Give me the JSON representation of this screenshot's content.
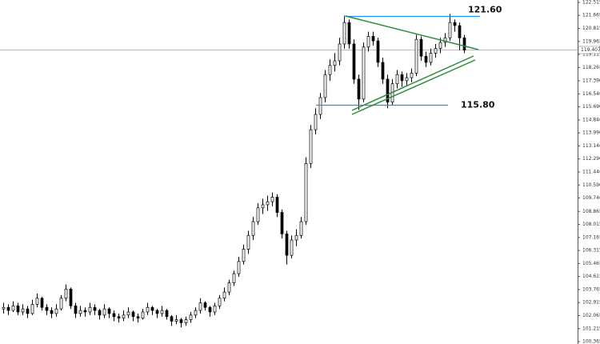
{
  "chart_data": {
    "type": "candlestick",
    "candles": [
      [
        102.5,
        102.9,
        102.2,
        102.6
      ],
      [
        102.6,
        102.8,
        102.1,
        102.4
      ],
      [
        102.4,
        103.0,
        102.3,
        102.7
      ],
      [
        102.7,
        102.9,
        102.1,
        102.3
      ],
      [
        102.3,
        102.8,
        102.1,
        102.5
      ],
      [
        102.5,
        102.7,
        101.9,
        102.2
      ],
      [
        102.2,
        103.1,
        102.1,
        102.8
      ],
      [
        102.8,
        103.5,
        102.6,
        103.2
      ],
      [
        103.2,
        103.3,
        102.4,
        102.6
      ],
      [
        102.6,
        102.8,
        102.1,
        102.4
      ],
      [
        102.4,
        102.6,
        101.9,
        102.2
      ],
      [
        102.2,
        102.8,
        102.0,
        102.5
      ],
      [
        102.5,
        103.4,
        102.4,
        103.2
      ],
      [
        103.2,
        104.1,
        103.0,
        103.8
      ],
      [
        103.8,
        103.9,
        102.5,
        102.7
      ],
      [
        102.7,
        102.9,
        101.9,
        102.2
      ],
      [
        102.2,
        102.7,
        102.0,
        102.4
      ],
      [
        102.4,
        102.6,
        102.0,
        102.3
      ],
      [
        102.3,
        102.9,
        102.1,
        102.6
      ],
      [
        102.6,
        102.8,
        102.1,
        102.4
      ],
      [
        102.4,
        102.5,
        101.8,
        102.1
      ],
      [
        102.1,
        102.8,
        101.9,
        102.5
      ],
      [
        102.5,
        102.6,
        101.9,
        102.2
      ],
      [
        102.2,
        102.4,
        101.7,
        102.0
      ],
      [
        102.0,
        102.2,
        101.6,
        101.9
      ],
      [
        101.9,
        102.4,
        101.7,
        102.1
      ],
      [
        102.1,
        102.6,
        101.9,
        102.3
      ],
      [
        102.3,
        102.4,
        101.7,
        102.0
      ],
      [
        102.0,
        102.2,
        101.6,
        101.9
      ],
      [
        101.9,
        102.5,
        101.8,
        102.3
      ],
      [
        102.3,
        102.9,
        102.1,
        102.6
      ],
      [
        102.6,
        102.7,
        102.1,
        102.4
      ],
      [
        102.4,
        102.5,
        101.9,
        102.2
      ],
      [
        102.2,
        102.7,
        102.0,
        102.4
      ],
      [
        102.4,
        102.5,
        101.8,
        102.0
      ],
      [
        102.0,
        102.1,
        101.4,
        101.7
      ],
      [
        101.7,
        102.1,
        101.5,
        101.8
      ],
      [
        101.8,
        101.9,
        101.3,
        101.6
      ],
      [
        101.6,
        102.0,
        101.4,
        101.8
      ],
      [
        101.8,
        102.3,
        101.6,
        102.1
      ],
      [
        102.1,
        102.6,
        101.9,
        102.4
      ],
      [
        102.4,
        103.2,
        102.2,
        102.9
      ],
      [
        102.9,
        103.0,
        102.4,
        102.6
      ],
      [
        102.6,
        102.7,
        102.0,
        102.3
      ],
      [
        102.3,
        102.9,
        102.1,
        102.7
      ],
      [
        102.7,
        103.4,
        102.5,
        103.2
      ],
      [
        103.2,
        103.9,
        103.0,
        103.6
      ],
      [
        103.6,
        104.4,
        103.4,
        104.2
      ],
      [
        104.2,
        105.0,
        104.0,
        104.8
      ],
      [
        104.8,
        105.9,
        104.6,
        105.6
      ],
      [
        105.6,
        106.7,
        105.4,
        106.4
      ],
      [
        106.4,
        107.6,
        106.1,
        107.3
      ],
      [
        107.3,
        108.5,
        107.0,
        108.2
      ],
      [
        108.2,
        109.4,
        108.0,
        109.1
      ],
      [
        109.1,
        109.7,
        108.7,
        109.3
      ],
      [
        109.3,
        109.9,
        108.9,
        109.5
      ],
      [
        109.5,
        110.1,
        109.2,
        109.8
      ],
      [
        109.8,
        110.0,
        108.5,
        108.8
      ],
      [
        108.8,
        109.0,
        107.1,
        107.4
      ],
      [
        107.4,
        107.6,
        105.4,
        106.0
      ],
      [
        106.0,
        107.3,
        105.8,
        107.0
      ],
      [
        107.0,
        107.7,
        106.6,
        107.3
      ],
      [
        107.3,
        108.5,
        107.1,
        108.2
      ],
      [
        108.2,
        112.4,
        108.0,
        112.0
      ],
      [
        112.0,
        114.5,
        111.7,
        114.2
      ],
      [
        114.2,
        115.6,
        113.9,
        115.2
      ],
      [
        115.2,
        116.6,
        114.9,
        116.3
      ],
      [
        116.3,
        118.1,
        116.0,
        117.8
      ],
      [
        117.8,
        118.8,
        117.4,
        118.4
      ],
      [
        118.4,
        119.2,
        118.0,
        118.7
      ],
      [
        118.7,
        120.2,
        118.4,
        119.8
      ],
      [
        119.8,
        121.66,
        119.5,
        121.2
      ],
      [
        121.2,
        121.4,
        119.5,
        119.8
      ],
      [
        119.8,
        120.1,
        117.2,
        117.5
      ],
      [
        117.5,
        117.8,
        115.5,
        116.2
      ],
      [
        116.2,
        119.9,
        116.0,
        119.6
      ],
      [
        119.6,
        120.6,
        119.3,
        120.3
      ],
      [
        120.3,
        120.6,
        119.7,
        120.0
      ],
      [
        120.0,
        120.2,
        118.3,
        118.6
      ],
      [
        118.6,
        118.9,
        117.2,
        117.5
      ],
      [
        117.5,
        117.8,
        115.6,
        116.0
      ],
      [
        116.0,
        117.5,
        115.8,
        117.2
      ],
      [
        117.2,
        118.1,
        116.9,
        117.8
      ],
      [
        117.8,
        118.0,
        117.0,
        117.4
      ],
      [
        117.4,
        117.9,
        117.1,
        117.6
      ],
      [
        117.6,
        118.2,
        117.3,
        117.9
      ],
      [
        117.9,
        120.4,
        117.7,
        120.1
      ],
      [
        120.1,
        120.3,
        118.7,
        119.0
      ],
      [
        119.0,
        119.3,
        118.3,
        118.6
      ],
      [
        118.6,
        119.5,
        118.4,
        119.2
      ],
      [
        119.2,
        119.8,
        118.9,
        119.5
      ],
      [
        119.5,
        120.2,
        119.2,
        119.9
      ],
      [
        119.9,
        120.5,
        119.6,
        120.2
      ],
      [
        120.2,
        121.75,
        120.0,
        121.2
      ],
      [
        121.2,
        121.4,
        120.6,
        121.0
      ],
      [
        121.0,
        121.2,
        119.4,
        120.2
      ],
      [
        120.2,
        120.4,
        119.2,
        119.4
      ]
    ],
    "ylim": [
      100.21,
      122.67
    ],
    "yticks": [
      122.515,
      121.665,
      120.815,
      119.965,
      119.115,
      118.265,
      {
        "value": 117.39,
        "label": "117.390"
      },
      {
        "value": 116.54,
        "label": "116.540"
      },
      {
        "value": 115.69,
        "label": "115.690"
      },
      {
        "value": 114.84,
        "label": "114.840"
      },
      {
        "value": 113.99,
        "label": "113.990"
      },
      {
        "value": 113.14,
        "label": "113.140"
      },
      {
        "value": 112.29,
        "label": "112.290"
      },
      {
        "value": 111.44,
        "label": "111.440"
      },
      {
        "value": 110.59,
        "label": "110.590"
      },
      {
        "value": 109.74,
        "label": "109.740"
      },
      108.865,
      108.015,
      107.165,
      106.315,
      105.465,
      104.615,
      103.765,
      102.915,
      102.065,
      101.215,
      100.365
    ],
    "current_price": 119.407,
    "levels": [
      {
        "value": 121.6,
        "label": "121.60"
      },
      {
        "value": 115.8,
        "label": "115.80"
      }
    ]
  }
}
